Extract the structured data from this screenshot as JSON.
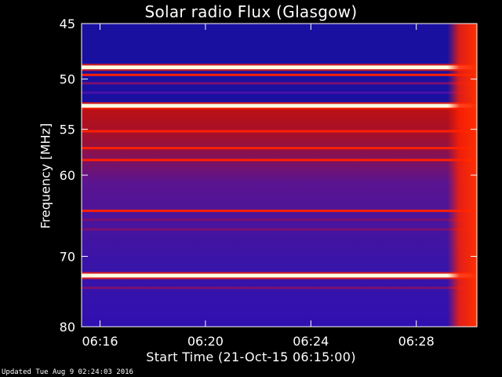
{
  "chart_data": {
    "type": "heatmap",
    "title": "Solar radio Flux (Glasgow)",
    "xlabel": "Start Time (21-Oct-15 06:15:00)",
    "ylabel": "Frequency [MHz]",
    "x_ticks": [
      "06:16",
      "06:20",
      "06:24",
      "06:28"
    ],
    "x_tick_minutes": [
      16,
      20,
      24,
      28
    ],
    "xlim_minutes": [
      15.3,
      30.3
    ],
    "y_ticks": [
      45,
      50,
      55,
      60,
      70,
      80
    ],
    "ylim": [
      45,
      80
    ],
    "y_scale": "log",
    "colormap": {
      "low": "#1a10a0",
      "mid": "#7a1070",
      "high": "#ff2000",
      "peak": "#ffffe0"
    },
    "background_band": {
      "from_mhz": 45,
      "to_mhz": 52.5,
      "level": "low"
    },
    "lines": [
      {
        "freq": 48.9,
        "level": "peak"
      },
      {
        "freq": 49.6,
        "level": "high"
      },
      {
        "freq": 50.4,
        "level": "mid"
      },
      {
        "freq": 51.3,
        "level": "low-mid"
      },
      {
        "freq": 52.6,
        "level": "peak"
      },
      {
        "freq": 55.2,
        "level": "high"
      },
      {
        "freq": 57.0,
        "level": "high"
      },
      {
        "freq": 58.3,
        "level": "high"
      },
      {
        "freq": 64.2,
        "level": "high"
      },
      {
        "freq": 65.3,
        "level": "mid"
      },
      {
        "freq": 66.5,
        "level": "mid"
      },
      {
        "freq": 72.6,
        "level": "peak"
      },
      {
        "freq": 74.3,
        "level": "mid"
      }
    ],
    "burst": {
      "start_minute": 29.6,
      "end_minute": 30.3,
      "level": "high"
    }
  },
  "footer": "Updated Tue Aug  9 02:24:03 2016"
}
